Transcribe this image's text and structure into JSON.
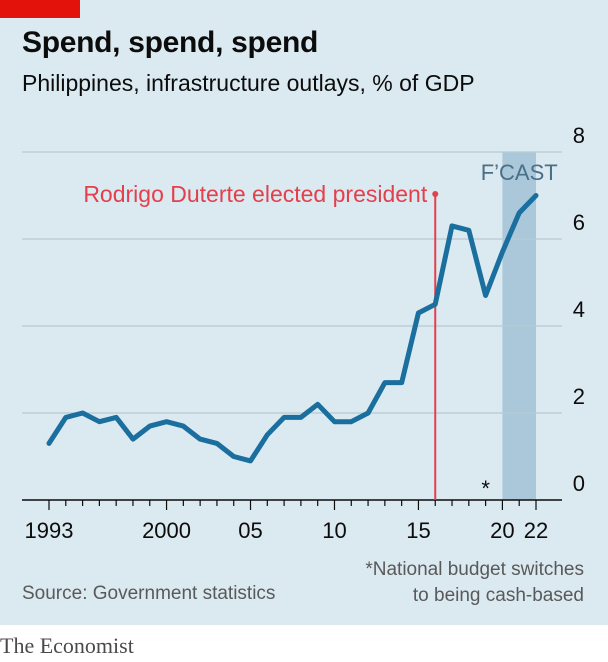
{
  "title": "Spend, spend, spend",
  "subtitle": "Philippines, infrastructure outlays, % of GDP",
  "source": "Source: Government statistics",
  "footnote": {
    "line1": "*National budget switches",
    "line2": "to being cash-based"
  },
  "brand": "The Economist",
  "colors": {
    "background": "#dbe9f1",
    "line": "#1a6f9e",
    "annotation": "#e3404c",
    "forecast_band": "#aac8da",
    "brand_red": "#e3120b"
  },
  "chart_data": {
    "type": "line",
    "title": "Spend, spend, spend",
    "subtitle": "Philippines, infrastructure outlays, % of GDP",
    "ylim": [
      0,
      8
    ],
    "xlim": [
      1993,
      2022
    ],
    "y_ticks": [
      "0",
      "2",
      "4",
      "6",
      "8"
    ],
    "x_tick_labels": [
      {
        "year": 1993,
        "label": "1993"
      },
      {
        "year": 2000,
        "label": "2000"
      },
      {
        "year": 2005,
        "label": "05"
      },
      {
        "year": 2010,
        "label": "10"
      },
      {
        "year": 2015,
        "label": "15"
      },
      {
        "year": 2020,
        "label": "20"
      },
      {
        "year": 2022,
        "label": "22"
      }
    ],
    "grid": "horizontal",
    "series": [
      {
        "x": [
          1993,
          1994,
          1995,
          1996,
          1997,
          1998,
          1999,
          2000,
          2001,
          2002,
          2003,
          2004,
          2005,
          2006,
          2007,
          2008,
          2009,
          2010,
          2011,
          2012,
          2013,
          2014,
          2015,
          2016,
          2017,
          2018,
          2019,
          2020,
          2021,
          2022
        ],
        "values": [
          1.3,
          1.9,
          2.0,
          1.8,
          1.9,
          1.4,
          1.7,
          1.8,
          1.7,
          1.4,
          1.3,
          1.0,
          0.9,
          1.5,
          1.9,
          1.9,
          2.2,
          1.8,
          1.8,
          2.0,
          2.7,
          2.7,
          4.3,
          4.5,
          6.3,
          6.2,
          4.7,
          5.7,
          6.6,
          7.0
        ]
      }
    ],
    "annotations": {
      "vline_year": 2016,
      "vline_label": "Rodrigo Duterte elected president",
      "forecast_start": 2020,
      "forecast_end": 2022,
      "forecast_label": "F’CAST",
      "asterisk_year": 2019,
      "asterisk_label": "*"
    }
  }
}
